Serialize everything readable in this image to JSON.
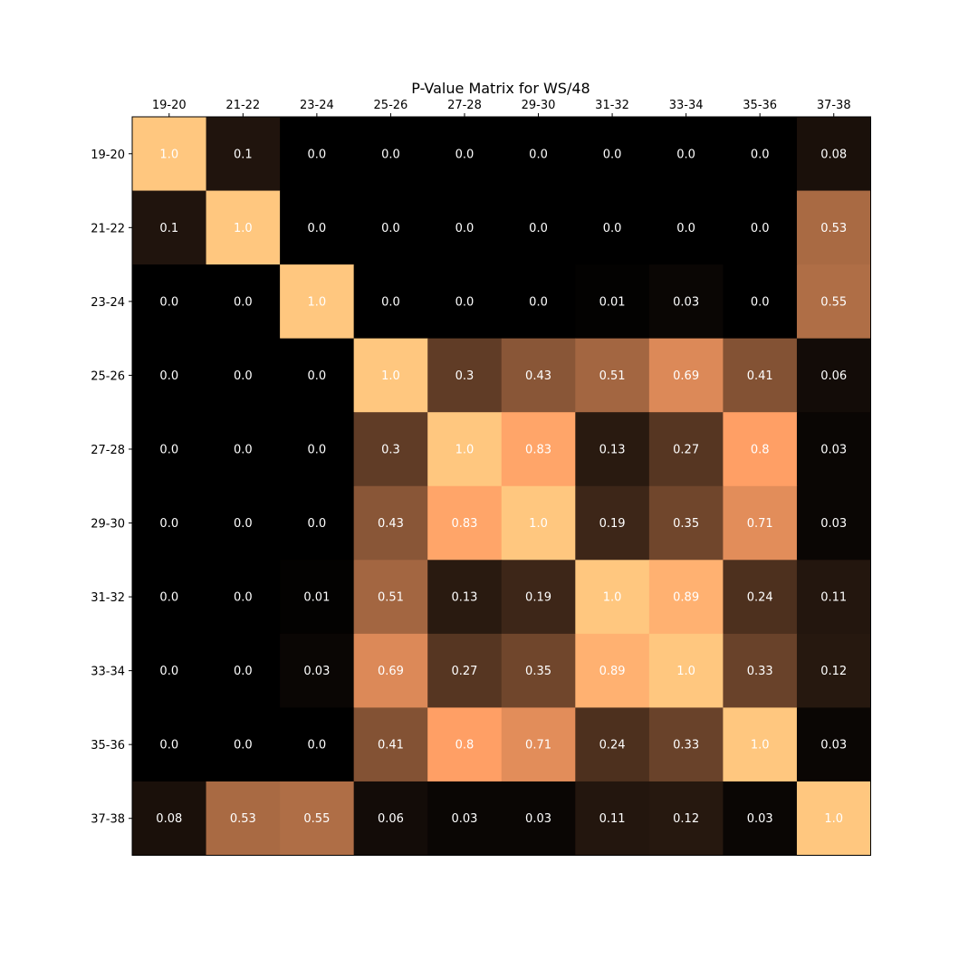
{
  "chart_data": {
    "type": "heatmap",
    "title": "P-Value Matrix for WS/48",
    "xlabel": "",
    "ylabel": "",
    "x_tick_position": "top",
    "categories": [
      "19-20",
      "21-22",
      "23-24",
      "25-26",
      "27-28",
      "29-30",
      "31-32",
      "33-34",
      "35-36",
      "37-38"
    ],
    "values": [
      [
        "1.0",
        "0.1",
        "0.0",
        "0.0",
        "0.0",
        "0.0",
        "0.0",
        "0.0",
        "0.0",
        "0.08"
      ],
      [
        "0.1",
        "1.0",
        "0.0",
        "0.0",
        "0.0",
        "0.0",
        "0.0",
        "0.0",
        "0.0",
        "0.53"
      ],
      [
        "0.0",
        "0.0",
        "1.0",
        "0.0",
        "0.0",
        "0.0",
        "0.01",
        "0.03",
        "0.0",
        "0.55"
      ],
      [
        "0.0",
        "0.0",
        "0.0",
        "1.0",
        "0.3",
        "0.43",
        "0.51",
        "0.69",
        "0.41",
        "0.06"
      ],
      [
        "0.0",
        "0.0",
        "0.0",
        "0.3",
        "1.0",
        "0.83",
        "0.13",
        "0.27",
        "0.8",
        "0.03"
      ],
      [
        "0.0",
        "0.0",
        "0.0",
        "0.43",
        "0.83",
        "1.0",
        "0.19",
        "0.35",
        "0.71",
        "0.03"
      ],
      [
        "0.0",
        "0.0",
        "0.01",
        "0.51",
        "0.13",
        "0.19",
        "1.0",
        "0.89",
        "0.24",
        "0.11"
      ],
      [
        "0.0",
        "0.0",
        "0.03",
        "0.69",
        "0.27",
        "0.35",
        "0.89",
        "1.0",
        "0.33",
        "0.12"
      ],
      [
        "0.0",
        "0.0",
        "0.0",
        "0.41",
        "0.8",
        "0.71",
        "0.24",
        "0.33",
        "1.0",
        "0.03"
      ],
      [
        "0.08",
        "0.53",
        "0.55",
        "0.06",
        "0.03",
        "0.03",
        "0.11",
        "0.12",
        "0.03",
        "1.0"
      ]
    ],
    "value_range": [
      0,
      1
    ],
    "colormap": "copper",
    "colormap_max_color": "#ffc77f",
    "cell_text_color": "#ffffff",
    "grid": false,
    "legend": "none"
  }
}
